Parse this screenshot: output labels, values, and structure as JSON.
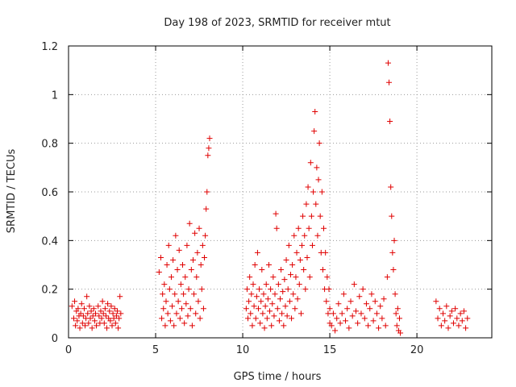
{
  "chart_data": {
    "type": "scatter",
    "title": "Day 198 of 2023, SRMTID for receiver mtut",
    "xlabel": "GPS time / hours",
    "ylabel": "SRMTID / TECUs",
    "xlim": [
      0,
      24.3
    ],
    "ylim": [
      0,
      1.2
    ],
    "xticks": [
      0,
      5,
      10,
      15,
      20
    ],
    "yticks": [
      0,
      0.2,
      0.4,
      0.6,
      0.8,
      1,
      1.2
    ],
    "xtick_labels": [
      "0",
      "5",
      "10",
      "15",
      "20"
    ],
    "ytick_labels": [
      "0",
      "0.2",
      "0.4",
      "0.6",
      "0.8",
      "1",
      "1.2"
    ],
    "grid": true,
    "marker": "+",
    "series_color": "#e00000",
    "series": [
      {
        "name": "SRMTID",
        "points": [
          [
            0.2,
            0.13
          ],
          [
            0.3,
            0.08
          ],
          [
            0.35,
            0.15
          ],
          [
            0.4,
            0.05
          ],
          [
            0.45,
            0.11
          ],
          [
            0.5,
            0.07
          ],
          [
            0.55,
            0.12
          ],
          [
            0.6,
            0.09
          ],
          [
            0.65,
            0.04
          ],
          [
            0.7,
            0.1
          ],
          [
            0.75,
            0.14
          ],
          [
            0.8,
            0.06
          ],
          [
            0.85,
            0.09
          ],
          [
            0.9,
            0.12
          ],
          [
            0.95,
            0.05
          ],
          [
            1.0,
            0.08
          ],
          [
            1.05,
            0.17
          ],
          [
            1.1,
            0.1
          ],
          [
            1.15,
            0.06
          ],
          [
            1.2,
            0.13
          ],
          [
            1.25,
            0.08
          ],
          [
            1.3,
            0.11
          ],
          [
            1.35,
            0.04
          ],
          [
            1.4,
            0.09
          ],
          [
            1.45,
            0.12
          ],
          [
            1.5,
            0.07
          ],
          [
            1.55,
            0.1
          ],
          [
            1.6,
            0.05
          ],
          [
            1.7,
            0.13
          ],
          [
            1.75,
            0.09
          ],
          [
            1.8,
            0.06
          ],
          [
            1.85,
            0.11
          ],
          [
            1.9,
            0.08
          ],
          [
            1.95,
            0.15
          ],
          [
            2.0,
            0.1
          ],
          [
            2.05,
            0.06
          ],
          [
            2.1,
            0.12
          ],
          [
            2.15,
            0.09
          ],
          [
            2.2,
            0.04
          ],
          [
            2.25,
            0.14
          ],
          [
            2.3,
            0.08
          ],
          [
            2.35,
            0.11
          ],
          [
            2.4,
            0.07
          ],
          [
            2.45,
            0.13
          ],
          [
            2.5,
            0.05
          ],
          [
            2.55,
            0.1
          ],
          [
            2.6,
            0.08
          ],
          [
            2.65,
            0.12
          ],
          [
            2.7,
            0.06
          ],
          [
            2.75,
            0.09
          ],
          [
            2.8,
            0.11
          ],
          [
            2.85,
            0.04
          ],
          [
            2.9,
            0.08
          ],
          [
            2.95,
            0.17
          ],
          [
            3.0,
            0.1
          ],
          [
            5.2,
            0.27
          ],
          [
            5.3,
            0.33
          ],
          [
            5.35,
            0.08
          ],
          [
            5.4,
            0.18
          ],
          [
            5.45,
            0.12
          ],
          [
            5.5,
            0.22
          ],
          [
            5.55,
            0.05
          ],
          [
            5.6,
            0.15
          ],
          [
            5.65,
            0.3
          ],
          [
            5.7,
            0.1
          ],
          [
            5.75,
            0.38
          ],
          [
            5.8,
            0.2
          ],
          [
            5.85,
            0.07
          ],
          [
            5.9,
            0.25
          ],
          [
            5.95,
            0.13
          ],
          [
            6.0,
            0.32
          ],
          [
            6.05,
            0.05
          ],
          [
            6.1,
            0.18
          ],
          [
            6.15,
            0.42
          ],
          [
            6.2,
            0.1
          ],
          [
            6.25,
            0.28
          ],
          [
            6.3,
            0.15
          ],
          [
            6.35,
            0.36
          ],
          [
            6.4,
            0.08
          ],
          [
            6.45,
            0.22
          ],
          [
            6.5,
            0.12
          ],
          [
            6.55,
            0.3
          ],
          [
            6.6,
            0.18
          ],
          [
            6.65,
            0.06
          ],
          [
            6.7,
            0.25
          ],
          [
            6.75,
            0.14
          ],
          [
            6.8,
            0.38
          ],
          [
            6.85,
            0.09
          ],
          [
            6.9,
            0.2
          ],
          [
            6.95,
            0.47
          ],
          [
            7.0,
            0.12
          ],
          [
            7.05,
            0.28
          ],
          [
            7.1,
            0.05
          ],
          [
            7.15,
            0.32
          ],
          [
            7.2,
            0.18
          ],
          [
            7.25,
            0.43
          ],
          [
            7.3,
            0.1
          ],
          [
            7.35,
            0.25
          ],
          [
            7.4,
            0.35
          ],
          [
            7.45,
            0.15
          ],
          [
            7.5,
            0.45
          ],
          [
            7.55,
            0.08
          ],
          [
            7.6,
            0.3
          ],
          [
            7.65,
            0.2
          ],
          [
            7.7,
            0.38
          ],
          [
            7.75,
            0.12
          ],
          [
            7.8,
            0.33
          ],
          [
            7.85,
            0.42
          ],
          [
            7.9,
            0.53
          ],
          [
            7.95,
            0.6
          ],
          [
            8.0,
            0.75
          ],
          [
            8.05,
            0.78
          ],
          [
            8.1,
            0.82
          ],
          [
            10.2,
            0.12
          ],
          [
            10.25,
            0.2
          ],
          [
            10.3,
            0.08
          ],
          [
            10.35,
            0.15
          ],
          [
            10.4,
            0.25
          ],
          [
            10.45,
            0.1
          ],
          [
            10.5,
            0.18
          ],
          [
            10.55,
            0.05
          ],
          [
            10.6,
            0.22
          ],
          [
            10.65,
            0.13
          ],
          [
            10.7,
            0.3
          ],
          [
            10.75,
            0.08
          ],
          [
            10.8,
            0.17
          ],
          [
            10.85,
            0.35
          ],
          [
            10.9,
            0.12
          ],
          [
            10.95,
            0.2
          ],
          [
            11.0,
            0.06
          ],
          [
            11.05,
            0.15
          ],
          [
            11.1,
            0.28
          ],
          [
            11.15,
            0.1
          ],
          [
            11.2,
            0.18
          ],
          [
            11.25,
            0.04
          ],
          [
            11.3,
            0.13
          ],
          [
            11.35,
            0.22
          ],
          [
            11.4,
            0.08
          ],
          [
            11.45,
            0.16
          ],
          [
            11.5,
            0.3
          ],
          [
            11.55,
            0.11
          ],
          [
            11.6,
            0.2
          ],
          [
            11.65,
            0.05
          ],
          [
            11.7,
            0.14
          ],
          [
            11.75,
            0.25
          ],
          [
            11.8,
            0.09
          ],
          [
            11.85,
            0.18
          ],
          [
            11.9,
            0.51
          ],
          [
            11.95,
            0.45
          ],
          [
            12.0,
            0.12
          ],
          [
            12.05,
            0.22
          ],
          [
            12.1,
            0.07
          ],
          [
            12.15,
            0.16
          ],
          [
            12.2,
            0.28
          ],
          [
            12.25,
            0.1
          ],
          [
            12.3,
            0.19
          ],
          [
            12.35,
            0.05
          ],
          [
            12.4,
            0.24
          ],
          [
            12.45,
            0.13
          ],
          [
            12.5,
            0.32
          ],
          [
            12.55,
            0.09
          ],
          [
            12.6,
            0.2
          ],
          [
            12.65,
            0.38
          ],
          [
            12.7,
            0.15
          ],
          [
            12.75,
            0.26
          ],
          [
            12.8,
            0.08
          ],
          [
            12.85,
            0.3
          ],
          [
            12.9,
            0.18
          ],
          [
            12.95,
            0.42
          ],
          [
            13.0,
            0.12
          ],
          [
            13.05,
            0.25
          ],
          [
            13.1,
            0.35
          ],
          [
            13.15,
            0.16
          ],
          [
            13.2,
            0.45
          ],
          [
            13.25,
            0.22
          ],
          [
            13.3,
            0.32
          ],
          [
            13.35,
            0.1
          ],
          [
            13.4,
            0.38
          ],
          [
            13.45,
            0.5
          ],
          [
            13.5,
            0.28
          ],
          [
            13.55,
            0.42
          ],
          [
            13.6,
            0.2
          ],
          [
            13.65,
            0.55
          ],
          [
            13.7,
            0.33
          ],
          [
            13.75,
            0.62
          ],
          [
            13.8,
            0.45
          ],
          [
            13.85,
            0.25
          ],
          [
            13.9,
            0.72
          ],
          [
            13.95,
            0.5
          ],
          [
            14.0,
            0.38
          ],
          [
            14.05,
            0.6
          ],
          [
            14.1,
            0.85
          ],
          [
            14.15,
            0.93
          ],
          [
            14.2,
            0.55
          ],
          [
            14.25,
            0.7
          ],
          [
            14.3,
            0.42
          ],
          [
            14.35,
            0.65
          ],
          [
            14.4,
            0.8
          ],
          [
            14.45,
            0.5
          ],
          [
            14.5,
            0.35
          ],
          [
            14.55,
            0.6
          ],
          [
            14.6,
            0.28
          ],
          [
            14.65,
            0.45
          ],
          [
            14.7,
            0.2
          ],
          [
            14.75,
            0.35
          ],
          [
            14.8,
            0.15
          ],
          [
            14.85,
            0.25
          ],
          [
            14.9,
            0.1
          ],
          [
            14.95,
            0.2
          ],
          [
            15.0,
            0.06
          ],
          [
            15.0,
            0.12
          ],
          [
            15.1,
            0.05
          ],
          [
            15.2,
            0.1
          ],
          [
            15.3,
            0.03
          ],
          [
            15.4,
            0.08
          ],
          [
            15.5,
            0.14
          ],
          [
            15.6,
            0.06
          ],
          [
            15.7,
            0.1
          ],
          [
            15.8,
            0.18
          ],
          [
            15.9,
            0.07
          ],
          [
            16.0,
            0.12
          ],
          [
            16.1,
            0.04
          ],
          [
            16.2,
            0.15
          ],
          [
            16.3,
            0.09
          ],
          [
            16.4,
            0.22
          ],
          [
            16.5,
            0.11
          ],
          [
            16.6,
            0.06
          ],
          [
            16.7,
            0.17
          ],
          [
            16.8,
            0.1
          ],
          [
            16.9,
            0.2
          ],
          [
            17.0,
            0.08
          ],
          [
            17.1,
            0.14
          ],
          [
            17.2,
            0.05
          ],
          [
            17.3,
            0.12
          ],
          [
            17.4,
            0.18
          ],
          [
            17.5,
            0.07
          ],
          [
            17.6,
            0.15
          ],
          [
            17.7,
            0.1
          ],
          [
            17.8,
            0.04
          ],
          [
            17.9,
            0.13
          ],
          [
            18.0,
            0.08
          ],
          [
            18.1,
            0.16
          ],
          [
            18.2,
            0.05
          ],
          [
            18.3,
            0.25
          ],
          [
            18.35,
            1.13
          ],
          [
            18.4,
            1.05
          ],
          [
            18.45,
            0.89
          ],
          [
            18.5,
            0.62
          ],
          [
            18.55,
            0.5
          ],
          [
            18.6,
            0.35
          ],
          [
            18.65,
            0.28
          ],
          [
            18.7,
            0.4
          ],
          [
            18.75,
            0.18
          ],
          [
            18.8,
            0.1
          ],
          [
            18.85,
            0.05
          ],
          [
            18.9,
            0.12
          ],
          [
            18.95,
            0.03
          ],
          [
            19.0,
            0.08
          ],
          [
            19.05,
            0.02
          ],
          [
            21.1,
            0.15
          ],
          [
            21.2,
            0.08
          ],
          [
            21.3,
            0.12
          ],
          [
            21.4,
            0.05
          ],
          [
            21.5,
            0.1
          ],
          [
            21.6,
            0.07
          ],
          [
            21.7,
            0.13
          ],
          [
            21.8,
            0.04
          ],
          [
            21.9,
            0.09
          ],
          [
            22.0,
            0.11
          ],
          [
            22.1,
            0.06
          ],
          [
            22.2,
            0.12
          ],
          [
            22.3,
            0.08
          ],
          [
            22.4,
            0.05
          ],
          [
            22.5,
            0.1
          ],
          [
            22.6,
            0.07
          ],
          [
            22.7,
            0.11
          ],
          [
            22.8,
            0.04
          ],
          [
            22.9,
            0.08
          ]
        ]
      }
    ]
  }
}
